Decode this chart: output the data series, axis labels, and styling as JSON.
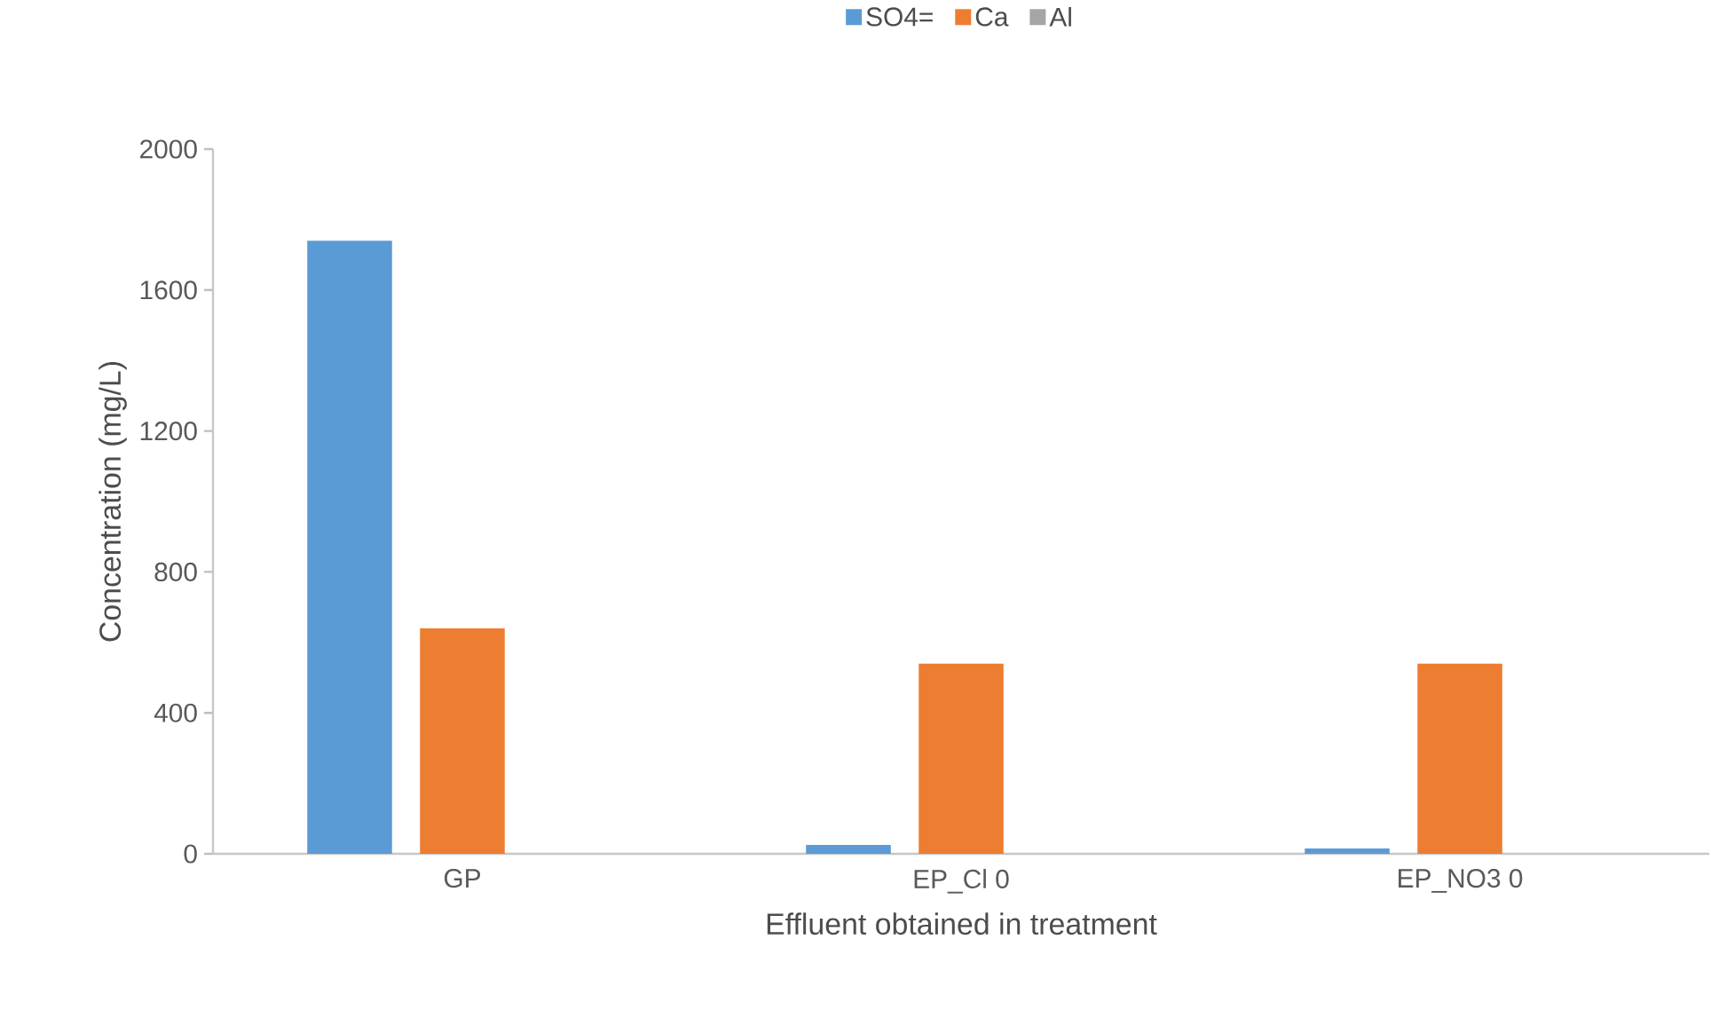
{
  "chart_data": {
    "type": "bar",
    "xlabel": "Effluent obtained in treatment",
    "ylabel": "Concentration (mg/L)",
    "categories": [
      "GP",
      "EP_Cl 0",
      "EP_NO3 0"
    ],
    "series": [
      {
        "name": "SO4=",
        "color": "#5b9bd5",
        "values": [
          1740,
          25,
          15
        ]
      },
      {
        "name": "Ca",
        "color": "#ed7d31",
        "values": [
          640,
          540,
          540
        ]
      },
      {
        "name": "Al",
        "color": "#a5a5a5",
        "values": [
          0,
          0,
          0
        ]
      }
    ],
    "ylim": [
      0,
      2000
    ],
    "yticks": [
      0,
      400,
      800,
      1200,
      1600,
      2000
    ],
    "grid": false,
    "legend": "top"
  }
}
